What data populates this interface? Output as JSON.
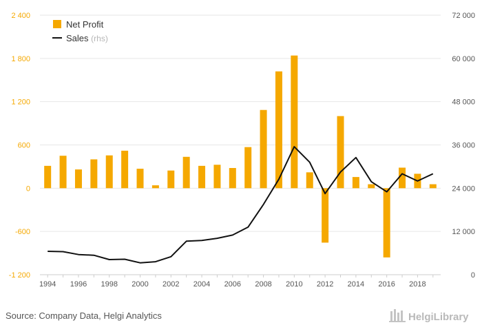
{
  "chart_data": {
    "type": "bar",
    "years": [
      1994,
      1995,
      1996,
      1997,
      1998,
      1999,
      2000,
      2001,
      2002,
      2003,
      2004,
      2005,
      2006,
      2007,
      2008,
      2009,
      2010,
      2011,
      2012,
      2013,
      2014,
      2015,
      2016,
      2017,
      2018,
      2019
    ],
    "x_tick_labels": [
      "1994",
      "1996",
      "1998",
      "2000",
      "2002",
      "2004",
      "2006",
      "2008",
      "2010",
      "2012",
      "2014",
      "2016",
      "2018"
    ],
    "left_axis": {
      "ylim": [
        -1200,
        2400
      ],
      "ticks": [
        -1200,
        -600,
        0,
        600,
        1200,
        1800,
        2400
      ],
      "tick_labels": [
        "-1 200",
        "-600",
        "0",
        "600",
        "1 200",
        "1 800",
        "2 400"
      ]
    },
    "right_axis": {
      "ylim": [
        0,
        72000
      ],
      "ticks": [
        0,
        12000,
        24000,
        36000,
        48000,
        60000,
        72000
      ],
      "tick_labels": [
        "0",
        "12 000",
        "24 000",
        "36 000",
        "48 000",
        "60 000",
        "72 000"
      ]
    },
    "series": [
      {
        "name": "Net Profit",
        "type": "bar",
        "axis": "left",
        "color": "#F5A800",
        "values": [
          310,
          450,
          260,
          400,
          455,
          520,
          270,
          40,
          245,
          435,
          310,
          325,
          280,
          570,
          1085,
          1620,
          1840,
          220,
          -755,
          1000,
          155,
          55,
          -960,
          285,
          200,
          55
        ]
      },
      {
        "name": "Sales",
        "name_suffix": "(rhs)",
        "type": "line",
        "axis": "right",
        "color": "#111111",
        "values": [
          6500,
          6400,
          5600,
          5400,
          4200,
          4300,
          3300,
          3600,
          5000,
          9300,
          9500,
          10100,
          11000,
          13200,
          19500,
          26500,
          35500,
          31200,
          22500,
          28500,
          32500,
          25800,
          23000,
          28000,
          26000,
          28000
        ]
      }
    ],
    "legend_position": "top-left",
    "grid": "horizontal"
  },
  "footer": {
    "source": "Source: Company Data, Helgi Analytics",
    "brand": "HelgiLibrary"
  },
  "colors": {
    "bar": "#F5A800",
    "line": "#111111",
    "grid": "#e6e6e6",
    "left_tick": "#F5A800"
  }
}
